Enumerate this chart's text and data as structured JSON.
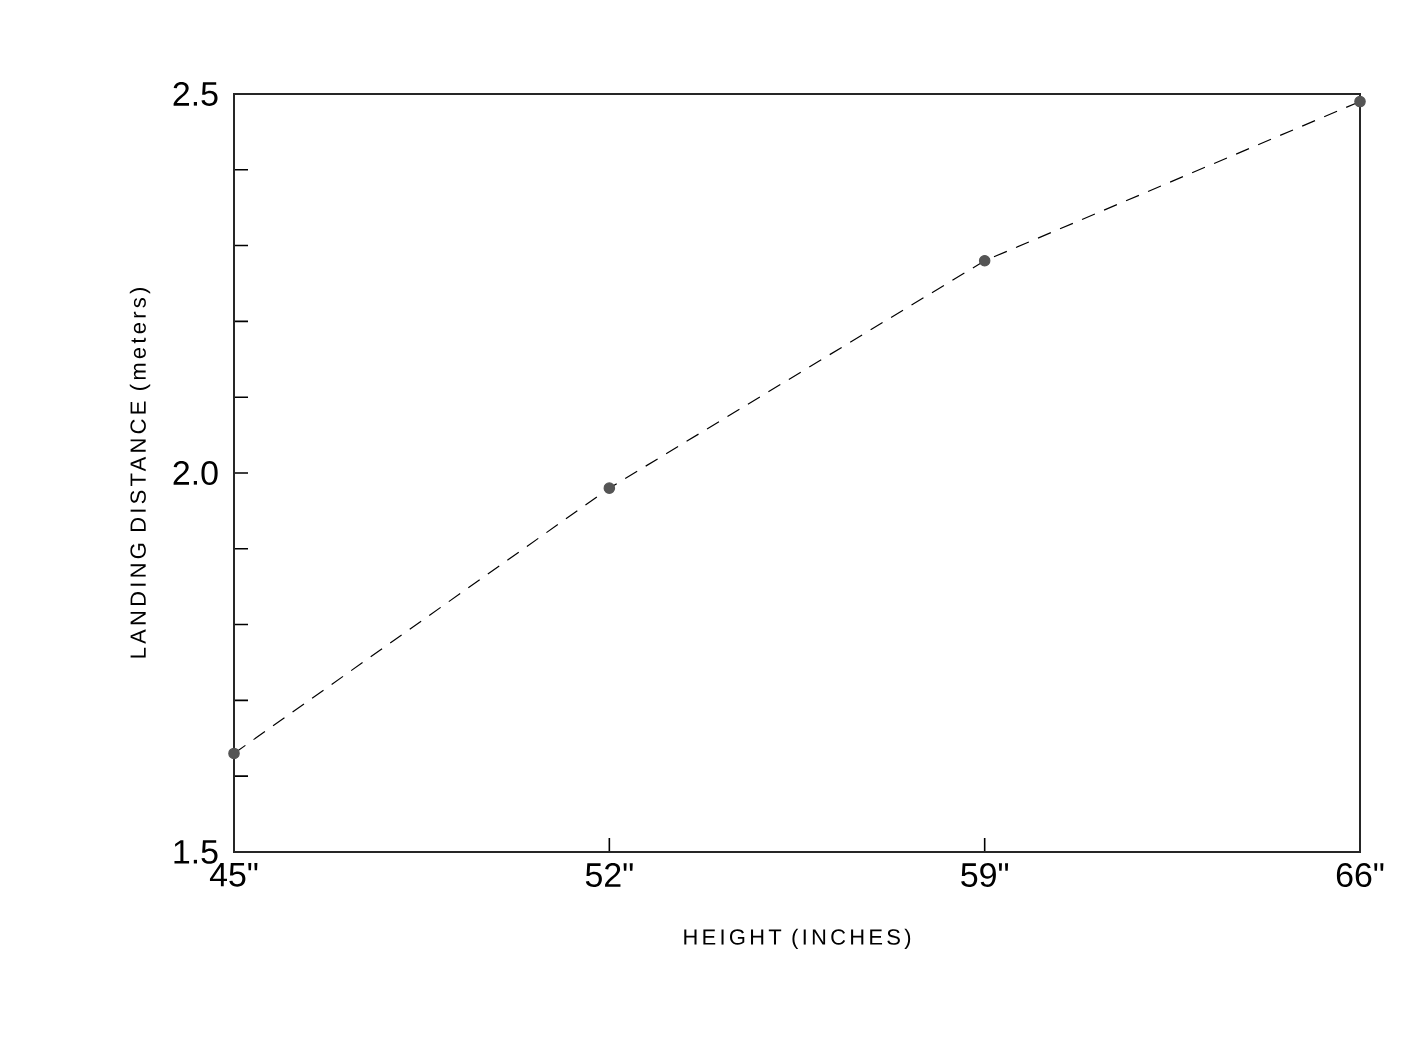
{
  "chart_data": {
    "type": "line",
    "xlabel": "HEIGHT (INCHES)",
    "ylabel": "LANDING DISTANCE (meters)",
    "x": [
      45,
      52,
      59,
      66
    ],
    "series": [
      {
        "color": "#555555",
        "values": [
          1.63,
          1.98,
          2.28,
          2.49
        ]
      }
    ],
    "xlim": [
      45,
      66
    ],
    "ylim": [
      1.5,
      2.5
    ],
    "xticks": [
      {
        "value": 45,
        "label": "45\""
      },
      {
        "value": 52,
        "label": "52\""
      },
      {
        "value": 59,
        "label": "59\""
      },
      {
        "value": 66,
        "label": "66\""
      }
    ],
    "yticks": [
      1.5,
      {
        "value": 1.6,
        "label": null
      },
      {
        "value": 1.7,
        "label": null
      },
      {
        "value": 1.8,
        "label": null
      },
      {
        "value": 1.9,
        "label": null
      },
      {
        "value": 2.0,
        "label": "2.0"
      },
      {
        "value": 2.1,
        "label": null
      },
      {
        "value": 2.2,
        "label": null
      },
      {
        "value": 2.3,
        "label": null
      },
      {
        "value": 2.4,
        "label": null
      },
      2.5
    ],
    "marker": "circle",
    "line_style": "dashed"
  }
}
